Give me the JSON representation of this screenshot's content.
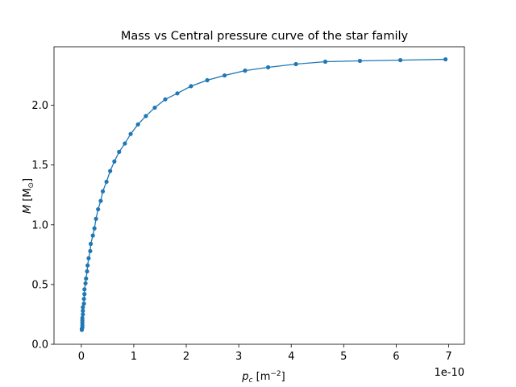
{
  "chart_data": {
    "type": "line",
    "title": "Mass vs Central pressure curve of the star family",
    "xlabel": [
      "p",
      "c",
      " [m",
      "−2",
      "]"
    ],
    "ylabel": [
      "M",
      " [M",
      "⊙",
      "]"
    ],
    "x_offset_label": "1e-10",
    "series": [
      {
        "color": "#1f77b4",
        "x": [
          0.01,
          0.01,
          0.02,
          0.02,
          0.02,
          0.02,
          0.02,
          0.03,
          0.03,
          0.03,
          0.05,
          0.05,
          0.06,
          0.06,
          0.08,
          0.09,
          0.11,
          0.12,
          0.14,
          0.17,
          0.18,
          0.22,
          0.25,
          0.28,
          0.32,
          0.37,
          0.41,
          0.48,
          0.55,
          0.63,
          0.72,
          0.83,
          0.94,
          1.08,
          1.23,
          1.4,
          1.6,
          1.83,
          2.09,
          2.4,
          2.73,
          3.12,
          3.56,
          4.09,
          4.65,
          5.31,
          6.08,
          6.94
        ],
        "values": [
          0.12,
          0.13,
          0.14,
          0.16,
          0.18,
          0.2,
          0.22,
          0.25,
          0.28,
          0.31,
          0.34,
          0.38,
          0.42,
          0.46,
          0.51,
          0.55,
          0.61,
          0.66,
          0.72,
          0.78,
          0.84,
          0.91,
          0.97,
          1.05,
          1.13,
          1.2,
          1.28,
          1.36,
          1.45,
          1.53,
          1.61,
          1.68,
          1.76,
          1.84,
          1.91,
          1.98,
          2.05,
          2.1,
          2.16,
          2.21,
          2.25,
          2.29,
          2.318,
          2.345,
          2.365,
          2.372,
          2.378,
          2.385
        ]
      }
    ],
    "xlim": [
      -0.52,
      7.3
    ],
    "xticks": [
      0,
      1,
      2,
      3,
      4,
      5,
      6,
      7
    ],
    "ylim": [
      0,
      2.49
    ],
    "yticks": [
      {
        "value": 0,
        "label": "0.0"
      },
      {
        "value": 0.5,
        "label": "0.5"
      },
      {
        "value": 1,
        "label": "1.0"
      },
      {
        "value": 1.5,
        "label": "1.5"
      },
      {
        "value": 2,
        "label": "2.0"
      }
    ],
    "grid": false
  }
}
